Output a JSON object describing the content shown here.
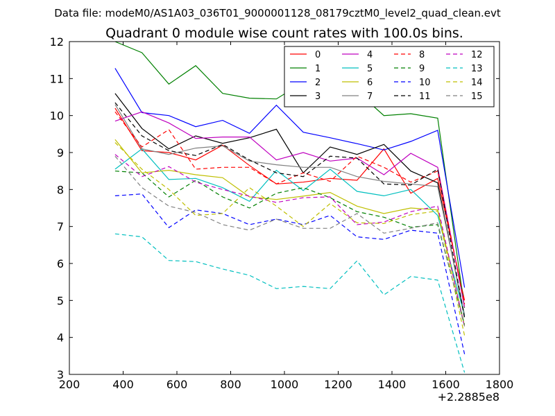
{
  "chart_data": {
    "type": "line",
    "suptitle": "Data file: modeM0/AS1A03_036T01_9000001128_08179cztM0_level2_quad_clean.evt",
    "title": "Quadrant 0 module wise count rates with 100.0s bins.",
    "xlabel": "",
    "ylabel": "",
    "x_offset_label": "+2.2885e8",
    "xlim": [
      200,
      1800
    ],
    "ylim": [
      3,
      12
    ],
    "xticks": [
      "200",
      "400",
      "600",
      "800",
      "1000",
      "1200",
      "1400",
      "1600",
      "1800"
    ],
    "yticks": [
      "3",
      "4",
      "5",
      "6",
      "7",
      "8",
      "9",
      "10",
      "11",
      "12"
    ],
    "grid": false,
    "legend_position": "top-right",
    "x": [
      370,
      470,
      570,
      670,
      770,
      870,
      970,
      1070,
      1170,
      1270,
      1370,
      1470,
      1570,
      1670
    ],
    "series": [
      {
        "name": "0",
        "color": "#ff0000",
        "style": "solid",
        "values": [
          10.2,
          9.05,
          9.0,
          8.8,
          9.2,
          8.65,
          8.15,
          8.2,
          8.3,
          8.25,
          9.1,
          7.9,
          8.3,
          5.0
        ]
      },
      {
        "name": "1",
        "color": "#008000",
        "style": "solid",
        "values": [
          12.0,
          11.7,
          10.85,
          11.35,
          10.6,
          10.47,
          10.45,
          10.9,
          10.72,
          10.65,
          10.0,
          10.05,
          9.93,
          4.8
        ]
      },
      {
        "name": "2",
        "color": "#0000ff",
        "style": "solid",
        "values": [
          11.28,
          10.08,
          10.0,
          9.7,
          9.87,
          9.52,
          10.28,
          9.55,
          9.4,
          9.24,
          9.07,
          9.3,
          9.6,
          5.35
        ]
      },
      {
        "name": "3",
        "color": "#000000",
        "style": "solid",
        "values": [
          10.6,
          9.65,
          9.1,
          9.45,
          9.25,
          9.4,
          9.63,
          8.45,
          9.15,
          8.95,
          9.22,
          8.5,
          8.18,
          4.55
        ]
      },
      {
        "name": "4",
        "color": "#bf00bf",
        "style": "solid",
        "values": [
          9.85,
          10.1,
          9.8,
          9.38,
          9.42,
          9.42,
          8.8,
          9.0,
          8.77,
          8.85,
          8.4,
          8.98,
          8.6,
          4.82
        ]
      },
      {
        "name": "5",
        "color": "#00bfbf",
        "style": "solid",
        "values": [
          8.55,
          9.1,
          8.27,
          8.3,
          8.05,
          7.68,
          8.52,
          7.97,
          8.55,
          7.95,
          7.83,
          8.0,
          7.3,
          4.6
        ]
      },
      {
        "name": "6",
        "color": "#bfbf00",
        "style": "solid",
        "values": [
          9.35,
          8.45,
          8.52,
          8.4,
          8.32,
          7.8,
          7.73,
          7.82,
          7.92,
          7.55,
          7.35,
          7.5,
          7.45,
          4.32
        ]
      },
      {
        "name": "7",
        "color": "#808080",
        "style": "solid",
        "values": [
          10.3,
          9.1,
          8.95,
          9.12,
          9.18,
          8.77,
          8.67,
          8.6,
          8.6,
          8.35,
          8.22,
          8.15,
          8.08,
          4.62
        ]
      },
      {
        "name": "8",
        "color": "#ff0000",
        "style": "dashed",
        "values": [
          10.1,
          9.15,
          9.62,
          8.55,
          8.6,
          8.6,
          8.15,
          8.45,
          8.22,
          8.9,
          8.6,
          8.2,
          8.5,
          4.9
        ]
      },
      {
        "name": "9",
        "color": "#008000",
        "style": "dashed",
        "values": [
          8.5,
          8.45,
          7.8,
          8.25,
          7.8,
          7.5,
          7.9,
          8.05,
          7.78,
          7.4,
          7.25,
          6.98,
          7.05,
          4.35
        ]
      },
      {
        "name": "10",
        "color": "#0000ff",
        "style": "dashed",
        "values": [
          7.83,
          7.88,
          6.97,
          7.45,
          7.35,
          7.05,
          7.2,
          7.05,
          7.3,
          6.72,
          6.65,
          6.9,
          6.82,
          3.55
        ]
      },
      {
        "name": "11",
        "color": "#000000",
        "style": "dashed",
        "values": [
          10.35,
          9.45,
          9.05,
          8.92,
          9.22,
          8.8,
          8.45,
          8.35,
          8.9,
          8.85,
          8.15,
          8.12,
          8.55,
          4.52
        ]
      },
      {
        "name": "12",
        "color": "#bf00bf",
        "style": "dashed",
        "values": [
          8.95,
          8.35,
          8.62,
          8.2,
          8.0,
          7.82,
          7.65,
          7.78,
          7.8,
          7.05,
          7.12,
          7.4,
          7.55,
          4.28
        ]
      },
      {
        "name": "13",
        "color": "#00bfbf",
        "style": "dashed",
        "values": [
          6.8,
          6.72,
          6.08,
          6.05,
          5.85,
          5.68,
          5.32,
          5.38,
          5.32,
          6.07,
          5.15,
          5.65,
          5.55,
          3.05
        ]
      },
      {
        "name": "14",
        "color": "#bfbf00",
        "style": "dashed",
        "values": [
          9.27,
          8.55,
          8.0,
          7.3,
          7.35,
          8.05,
          7.55,
          7.0,
          7.62,
          7.1,
          7.08,
          7.32,
          7.42,
          4.05
        ]
      },
      {
        "name": "15",
        "color": "#808080",
        "style": "dashed",
        "values": [
          8.9,
          8.05,
          7.55,
          7.38,
          7.05,
          6.9,
          7.2,
          6.95,
          6.95,
          7.35,
          6.82,
          6.95,
          7.1,
          4.3
        ]
      }
    ]
  }
}
